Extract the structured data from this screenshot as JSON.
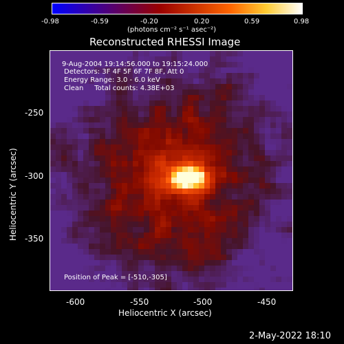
{
  "colorbar": {
    "ticks": [
      "-0.98",
      "-0.59",
      "-0.20",
      "0.20",
      "0.59",
      "0.98"
    ],
    "unit": "(photons cm⁻² s⁻¹ asec⁻²)"
  },
  "title": "Reconstructed RHESSI Image",
  "info": {
    "time": "9-Aug-2004 19:14:56.000 to 19:15:24.000",
    "detectors": "Detectors: 3F 4F 5F 6F 7F 8F, Att 0",
    "energy": "Energy Range: 3.0 - 6.0 keV",
    "clean": "Clean     Total counts: 4.38E+03",
    "peak": "Position of Peak = [-510,-305]"
  },
  "axes": {
    "xlabel": "Heliocentric X (arcsec)",
    "ylabel": "Heliocentric Y (arcsec)",
    "xticks": [
      "-600",
      "-550",
      "-500",
      "-450"
    ],
    "yticks": [
      "-250",
      "-300",
      "-350"
    ]
  },
  "footer": {
    "date": "2-May-2022 18:10"
  },
  "colors": {
    "colormap": [
      "#0000ff",
      "#3300aa",
      "#660055",
      "#990000",
      "#cc3300",
      "#ff6600",
      "#ffcc33",
      "#ffffff"
    ],
    "background_purple": "#5a2a8a"
  },
  "chart_data": {
    "type": "heatmap",
    "title": "Reconstructed RHESSI Image",
    "xlabel": "Heliocentric X (arcsec)",
    "ylabel": "Heliocentric Y (arcsec)",
    "xlim": [
      -620,
      -430
    ],
    "ylim": [
      -393,
      -205
    ],
    "colorbar_range": [
      -0.98,
      0.98
    ],
    "peak": {
      "x": -510,
      "y": -305
    }
  }
}
